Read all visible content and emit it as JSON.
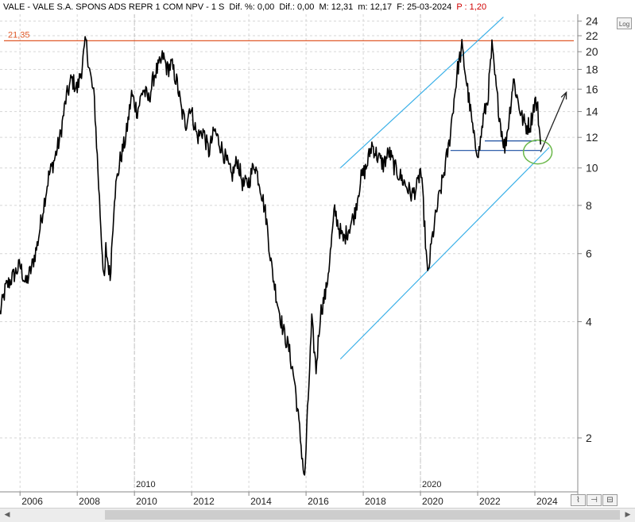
{
  "header": {
    "symbol": "VALE - VALE S.A. SPONS ADS REPR 1 COM NPV - 1 S",
    "dif_pct": "Dif. %: 0,00",
    "dif": "Dif.: 0,00",
    "max": "M: 12,31",
    "min": "m: 12,17",
    "date": "F: 25-03-2024",
    "p_label": "P : 1,20"
  },
  "toolbar": {
    "log_label": "Log"
  },
  "icons": {
    "chart_type": "line-chart-icon",
    "cursor": "cursor-lock-icon",
    "zoom": "zoom-fit-icon",
    "scroll_left": "arrow-left-icon",
    "scroll_right": "arrow-right-icon"
  },
  "colors": {
    "price": "#000000",
    "resistance": "#e05a2a",
    "channel": "#3ab0e8",
    "support": "#1a4ea0",
    "circle": "#6bb84a",
    "axis": "#888888"
  },
  "chart_data": {
    "type": "line",
    "title": "VALE - VALE S.A. SPONS ADS REPR 1 COM NPV",
    "y_scale": "log",
    "ylim": [
      1.45,
      25
    ],
    "y_ticks": [
      2,
      4,
      6,
      8,
      10,
      12,
      14,
      16,
      18,
      20,
      22,
      24
    ],
    "xlim": [
      2005.3,
      2025.5
    ],
    "x_ticks": [
      "2006",
      "2008",
      "2010",
      "2012",
      "2014",
      "2016",
      "2018",
      "2020",
      "2022",
      "2024"
    ],
    "x_tick_positions": [
      2006,
      2008,
      2010,
      2012,
      2014,
      2016,
      2018,
      2020,
      2022,
      2024
    ],
    "year_markers": [
      "2010",
      "2020"
    ],
    "year_marker_positions": [
      2010,
      2020
    ],
    "grid": true,
    "series": [
      {
        "x": [
          2005.3,
          2005.5,
          2005.8,
          2006.0,
          2006.2,
          2006.4,
          2006.6,
          2006.8,
          2007.0,
          2007.2,
          2007.4,
          2007.6,
          2007.8,
          2008.0,
          2008.15,
          2008.3,
          2008.45,
          2008.6,
          2008.75,
          2008.85,
          2008.95,
          2009.0,
          2009.15,
          2009.3,
          2009.5,
          2009.7,
          2009.9,
          2010.1,
          2010.3,
          2010.5,
          2010.7,
          2010.9,
          2011.0,
          2011.15,
          2011.3,
          2011.5,
          2011.65,
          2011.8,
          2011.95,
          2012.2,
          2012.4,
          2012.6,
          2012.8,
          2013.0,
          2013.2,
          2013.4,
          2013.6,
          2013.8,
          2014.0,
          2014.2,
          2014.4,
          2014.6,
          2014.8,
          2015.0,
          2015.2,
          2015.4,
          2015.6,
          2015.8,
          2015.95,
          2016.05,
          2016.2,
          2016.35,
          2016.5,
          2016.7,
          2016.85,
          2017.0,
          2017.15,
          2017.3,
          2017.5,
          2017.7,
          2017.9,
          2018.1,
          2018.3,
          2018.5,
          2018.7,
          2018.9,
          2019.1,
          2019.3,
          2019.5,
          2019.7,
          2019.9,
          2020.0,
          2020.1,
          2020.25,
          2020.4,
          2020.6,
          2020.8,
          2021.0,
          2021.15,
          2021.3,
          2021.45,
          2021.6,
          2021.75,
          2021.9,
          2022.05,
          2022.2,
          2022.35,
          2022.5,
          2022.65,
          2022.8,
          2022.95,
          2023.1,
          2023.25,
          2023.4,
          2023.55,
          2023.7,
          2023.85,
          2024.0,
          2024.1,
          2024.2
        ],
        "y": [
          4.2,
          4.9,
          5.3,
          5.6,
          5.0,
          5.5,
          6.3,
          7.8,
          9.5,
          10.5,
          12.0,
          15.0,
          17.0,
          16.0,
          18.0,
          21.3,
          17.5,
          15.0,
          9.0,
          6.5,
          5.0,
          6.2,
          5.2,
          8.5,
          10.5,
          12.0,
          15.5,
          14.0,
          16.0,
          15.0,
          17.5,
          18.5,
          19.5,
          18.0,
          18.5,
          16.5,
          14.0,
          13.0,
          14.5,
          12.0,
          12.5,
          11.0,
          12.5,
          11.5,
          10.5,
          9.5,
          10.5,
          9.0,
          9.2,
          10.3,
          9.0,
          7.5,
          5.5,
          4.5,
          3.8,
          3.4,
          2.8,
          2.0,
          1.55,
          2.3,
          4.0,
          3.0,
          4.2,
          4.8,
          6.0,
          7.8,
          7.0,
          6.5,
          7.0,
          7.6,
          9.3,
          10.0,
          11.5,
          10.7,
          10.2,
          11.0,
          10.0,
          9.5,
          9.0,
          8.5,
          9.0,
          10.0,
          8.0,
          5.2,
          6.5,
          8.0,
          9.5,
          11.5,
          14.5,
          18.0,
          20.5,
          17.0,
          14.0,
          11.5,
          11.0,
          13.5,
          15.0,
          20.5,
          16.0,
          13.0,
          11.2,
          13.5,
          17.0,
          15.0,
          13.5,
          12.8,
          13.0,
          15.0,
          14.2,
          11.5
        ]
      }
    ],
    "resistance_label": "21,35",
    "resistance_value": 21.35,
    "channel_upper": {
      "x": [
        2017.2,
        2022.9
      ],
      "y": [
        10.0,
        24.6
      ]
    },
    "channel_lower": {
      "x": [
        2017.2,
        2024.5
      ],
      "y": [
        3.2,
        11.3
      ]
    },
    "support_lines": [
      {
        "x": [
          2021.05,
          2024.2
        ],
        "y": [
          11.1,
          11.1
        ]
      },
      {
        "x": [
          2022.25,
          2024.05
        ],
        "y": [
          11.75,
          11.75
        ]
      }
    ],
    "projection_arrow": {
      "x": [
        2024.2,
        2025.1
      ],
      "y": [
        11.0,
        15.7
      ]
    },
    "circle_center": {
      "x": 2024.1,
      "y": 11.0
    }
  }
}
